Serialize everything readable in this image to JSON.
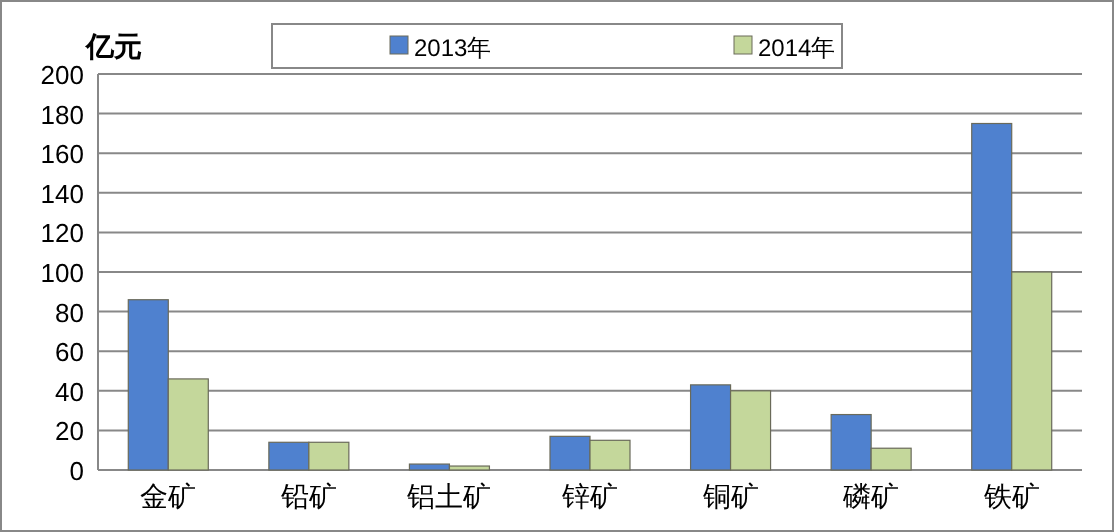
{
  "chart_data": {
    "type": "bar",
    "ylabel": "亿元",
    "categories": [
      "金矿",
      "铅矿",
      "铝土矿",
      "锌矿",
      "铜矿",
      "磷矿",
      "铁矿"
    ],
    "series": [
      {
        "name": "2013年",
        "color": "#4f81cf",
        "values": [
          86,
          14,
          3,
          17,
          43,
          28,
          175
        ]
      },
      {
        "name": "2014年",
        "color": "#c4d79b",
        "values": [
          46,
          14,
          2,
          15,
          40,
          11,
          100
        ]
      }
    ],
    "ylim": [
      0,
      200
    ],
    "yticks": [
      0,
      20,
      40,
      60,
      80,
      100,
      120,
      140,
      160,
      180,
      200
    ],
    "grid": "y",
    "legend": "top"
  }
}
